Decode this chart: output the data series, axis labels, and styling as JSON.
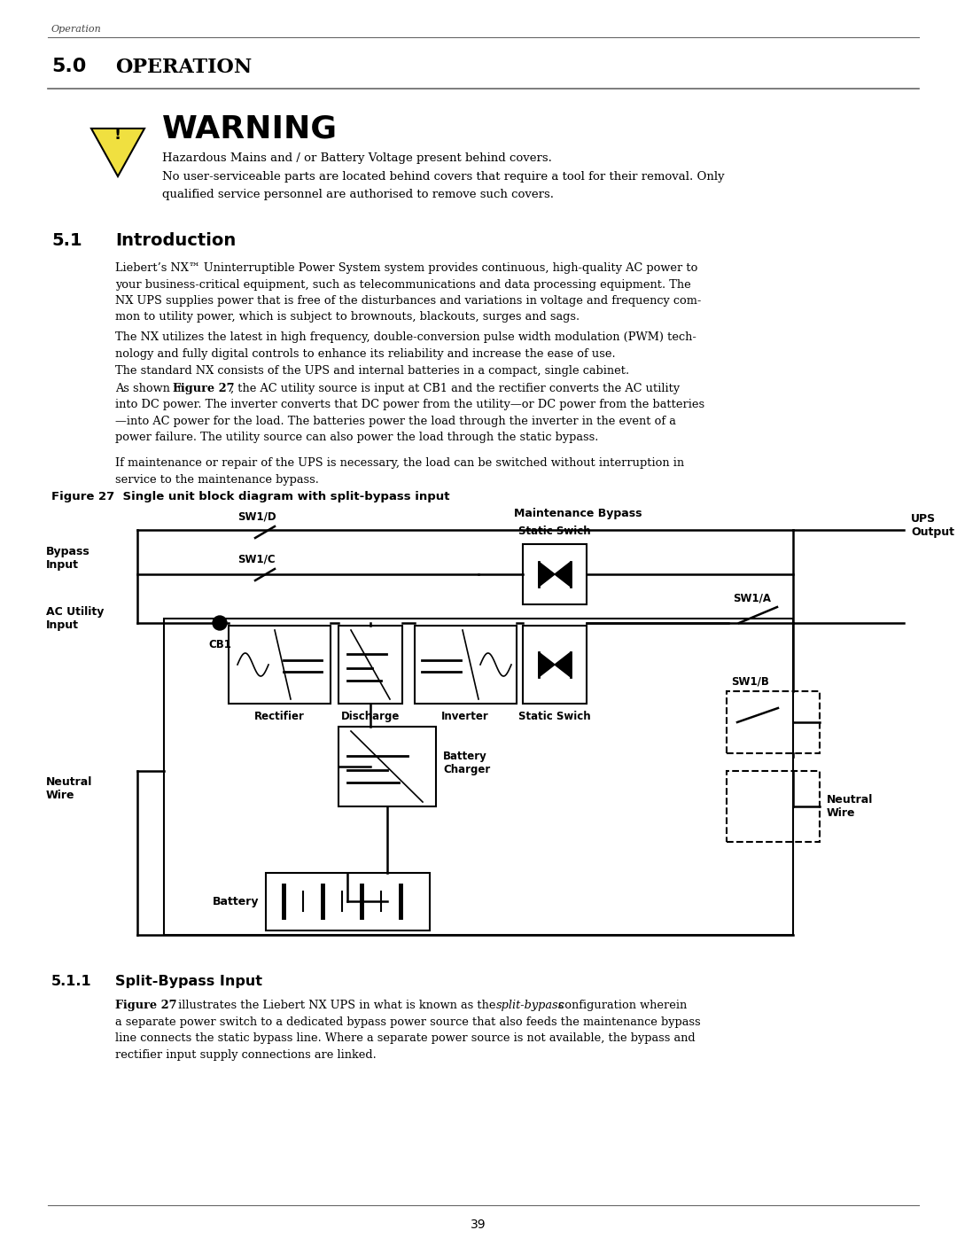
{
  "page_header": "Operation",
  "sec50_num": "5.0",
  "sec50_title": "Operation",
  "warning_title": "WARNING",
  "warning_line1": "Hazardous Mains and / or Battery Voltage present behind covers.",
  "warning_line2": "No user-serviceable parts are located behind covers that require a tool for their removal. Only\nqualified service personnel are authorised to remove such covers.",
  "sec51_num": "5.1",
  "sec51_title": "Introduction",
  "para1": "Liebert’s NX™ Uninterruptible Power System system provides continuous, high-quality AC power to\nyour business-critical equipment, such as telecommunications and data processing equipment. The\nNX UPS supplies power that is free of the disturbances and variations in voltage and frequency com-\nmon to utility power, which is subject to brownouts, blackouts, surges and sags.",
  "para2": "The NX utilizes the latest in high frequency, double-conversion pulse width modulation (PWM) tech-\nnology and fully digital controls to enhance its reliability and increase the ease of use.",
  "para3": "The standard NX consists of the UPS and internal batteries in a compact, single cabinet.",
  "para4a": "As shown in ",
  "para4b": "Figure 27",
  "para4c": ", the AC utility source is input at CB1 and the rectifier converts the AC utility\ninto DC power. The inverter converts that DC power from the utility—or DC power from the batteries\n—into AC power for the load. The batteries power the load through the inverter in the event of a\npower failure. The utility source can also power the load through the static bypass.",
  "para5": "If maintenance or repair of the UPS is necessary, the load can be switched without interruption in\nservice to the maintenance bypass.",
  "fig_caption": "Figure 27  Single unit block diagram with split-bypass input",
  "sec511_num": "5.1.1",
  "sec511_title": "Split-Bypass Input",
  "p511a": "Figure 27",
  "p511b": " illustrates the Liebert NX UPS in what is known as the ",
  "p511c": "split-bypass",
  "p511d": " configuration wherein\na separate power switch to a dedicated bypass power source that also feeds the maintenance bypass\nline connects the static bypass line. Where a separate power source is not available, the bypass and\nrectifier input supply connections are linked.",
  "page_number": "39",
  "bg_color": "#ffffff"
}
